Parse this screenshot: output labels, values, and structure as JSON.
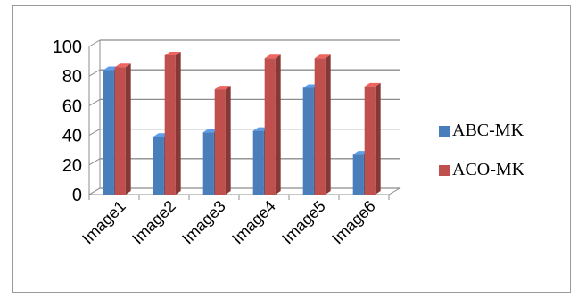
{
  "chart_data": {
    "type": "bar",
    "style": "3d-clustered",
    "categories": [
      "Image1",
      "Image2",
      "Image3",
      "Image4",
      "Image5",
      "Image6"
    ],
    "series": [
      {
        "name": "ABC-MK",
        "color": "#4a7ebb",
        "values": [
          84,
          39,
          42,
          43,
          72,
          27
        ]
      },
      {
        "name": "ACO-MK",
        "color": "#c0504d",
        "values": [
          86,
          94,
          71,
          92,
          92,
          73
        ]
      }
    ],
    "ylim": [
      0,
      100
    ],
    "yticks": [
      0,
      20,
      40,
      60,
      80,
      100
    ],
    "grid": true,
    "legend": "right"
  }
}
